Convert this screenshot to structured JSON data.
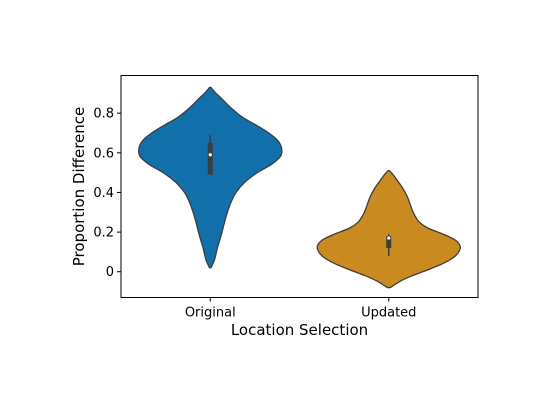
{
  "chart_data": {
    "type": "violin",
    "xlabel": "Location Selection",
    "ylabel": "Proportion Difference",
    "categories": [
      "Original",
      "Updated"
    ],
    "ylim": [
      -0.13,
      0.99
    ],
    "yticks": [
      0,
      0.2,
      0.4,
      0.6,
      0.8
    ],
    "ytick_labels": [
      "0",
      "0.2",
      "0.4",
      "0.6",
      "0.8"
    ],
    "grid": false,
    "colors": [
      "#1170aa",
      "#c98b20"
    ],
    "violins": [
      {
        "category": "Original",
        "min": 0.02,
        "max": 0.93,
        "q1": 0.49,
        "median": 0.59,
        "q3": 0.65,
        "whisker_low": 0.49,
        "whisker_high": 0.69,
        "density_y": [
          0.02,
          0.06,
          0.12,
          0.18,
          0.25,
          0.3,
          0.35,
          0.4,
          0.45,
          0.5,
          0.54,
          0.58,
          0.62,
          0.66,
          0.7,
          0.74,
          0.78,
          0.83,
          0.87,
          0.9,
          0.93
        ],
        "density_w": [
          0.01,
          0.06,
          0.1,
          0.15,
          0.2,
          0.24,
          0.29,
          0.36,
          0.48,
          0.66,
          0.85,
          0.98,
          1.0,
          0.95,
          0.82,
          0.64,
          0.45,
          0.28,
          0.17,
          0.08,
          0.01
        ]
      },
      {
        "category": "Updated",
        "min": -0.08,
        "max": 0.51,
        "q1": 0.12,
        "median": 0.17,
        "q3": 0.18,
        "whisker_low": 0.08,
        "whisker_high": 0.19,
        "density_y": [
          -0.08,
          -0.05,
          -0.02,
          0.01,
          0.04,
          0.07,
          0.1,
          0.13,
          0.16,
          0.19,
          0.22,
          0.25,
          0.28,
          0.31,
          0.34,
          0.37,
          0.4,
          0.43,
          0.46,
          0.49,
          0.51
        ],
        "density_w": [
          0.02,
          0.15,
          0.33,
          0.55,
          0.75,
          0.9,
          0.98,
          1.0,
          0.93,
          0.76,
          0.55,
          0.43,
          0.37,
          0.33,
          0.3,
          0.27,
          0.23,
          0.18,
          0.12,
          0.06,
          0.01
        ]
      }
    ]
  }
}
